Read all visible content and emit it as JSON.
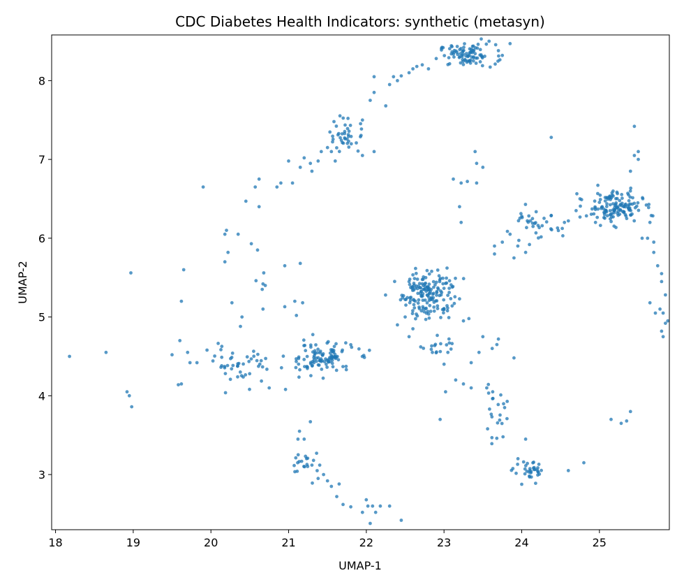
{
  "chart_data": {
    "type": "scatter",
    "title": "CDC Diabetes Health Indicators: synthetic (metasyn)",
    "xlabel": "UMAP-1",
    "ylabel": "UMAP-2",
    "xlim": [
      17.95,
      25.9
    ],
    "ylim": [
      2.3,
      8.58
    ],
    "xticks": [
      18,
      19,
      20,
      21,
      22,
      23,
      24,
      25
    ],
    "yticks": [
      3,
      4,
      5,
      6,
      7,
      8
    ],
    "point_color": "#1f77b4",
    "grid": false,
    "legend": "none",
    "clusters": [
      {
        "cx": 23.3,
        "cy": 8.32,
        "sx": 0.18,
        "sy": 0.07,
        "n": 90
      },
      {
        "cx": 22.8,
        "cy": 5.3,
        "sx": 0.17,
        "sy": 0.16,
        "n": 170
      },
      {
        "cx": 25.2,
        "cy": 6.4,
        "sx": 0.18,
        "sy": 0.1,
        "n": 140
      },
      {
        "cx": 21.4,
        "cy": 4.48,
        "sx": 0.22,
        "sy": 0.1,
        "n": 110
      },
      {
        "cx": 20.4,
        "cy": 4.4,
        "sx": 0.18,
        "sy": 0.12,
        "n": 45
      },
      {
        "cx": 21.75,
        "cy": 7.3,
        "sx": 0.12,
        "sy": 0.12,
        "n": 40
      },
      {
        "cx": 24.1,
        "cy": 3.03,
        "sx": 0.1,
        "sy": 0.06,
        "n": 35
      },
      {
        "cx": 24.15,
        "cy": 6.15,
        "sx": 0.18,
        "sy": 0.1,
        "n": 35
      },
      {
        "cx": 23.65,
        "cy": 3.75,
        "sx": 0.08,
        "sy": 0.15,
        "n": 22
      },
      {
        "cx": 21.2,
        "cy": 3.15,
        "sx": 0.1,
        "sy": 0.1,
        "n": 18
      },
      {
        "cx": 22.9,
        "cy": 4.6,
        "sx": 0.12,
        "sy": 0.08,
        "n": 15
      }
    ],
    "points": [
      [
        18.18,
        4.5
      ],
      [
        18.65,
        4.55
      ],
      [
        18.92,
        4.05
      ],
      [
        18.95,
        4.0
      ],
      [
        18.98,
        3.86
      ],
      [
        18.97,
        5.56
      ],
      [
        19.5,
        4.52
      ],
      [
        19.58,
        4.14
      ],
      [
        19.62,
        4.15
      ],
      [
        19.6,
        4.7
      ],
      [
        19.62,
        5.2
      ],
      [
        19.65,
        5.6
      ],
      [
        19.7,
        4.55
      ],
      [
        19.73,
        4.42
      ],
      [
        19.82,
        4.42
      ],
      [
        19.9,
        6.65
      ],
      [
        19.95,
        4.58
      ],
      [
        20.18,
        5.7
      ],
      [
        20.18,
        6.05
      ],
      [
        20.2,
        6.1
      ],
      [
        20.22,
        5.82
      ],
      [
        20.27,
        5.18
      ],
      [
        20.35,
        6.05
      ],
      [
        20.38,
        4.88
      ],
      [
        20.4,
        5.0
      ],
      [
        20.45,
        6.47
      ],
      [
        20.52,
        5.93
      ],
      [
        20.57,
        6.65
      ],
      [
        20.58,
        5.46
      ],
      [
        20.6,
        5.85
      ],
      [
        20.62,
        6.4
      ],
      [
        20.62,
        6.75
      ],
      [
        20.66,
        5.35
      ],
      [
        20.67,
        5.42
      ],
      [
        20.67,
        5.1
      ],
      [
        20.68,
        5.56
      ],
      [
        20.7,
        5.4
      ],
      [
        20.75,
        4.1
      ],
      [
        20.85,
        6.65
      ],
      [
        20.9,
        6.7
      ],
      [
        20.95,
        5.65
      ],
      [
        20.95,
        5.13
      ],
      [
        20.96,
        4.08
      ],
      [
        21.0,
        6.98
      ],
      [
        21.05,
        6.7
      ],
      [
        21.08,
        5.2
      ],
      [
        21.1,
        5.02
      ],
      [
        21.15,
        5.68
      ],
      [
        21.18,
        5.18
      ],
      [
        21.12,
        3.45
      ],
      [
        21.14,
        3.55
      ],
      [
        21.2,
        3.45
      ],
      [
        21.28,
        3.67
      ],
      [
        21.28,
        6.95
      ],
      [
        21.3,
        3.12
      ],
      [
        21.32,
        3.18
      ],
      [
        21.38,
        2.95
      ],
      [
        21.4,
        3.12
      ],
      [
        21.45,
        3.0
      ],
      [
        21.5,
        2.92
      ],
      [
        21.55,
        2.85
      ],
      [
        21.62,
        2.72
      ],
      [
        21.65,
        2.88
      ],
      [
        21.7,
        2.62
      ],
      [
        21.8,
        2.59
      ],
      [
        21.95,
        2.52
      ],
      [
        22.0,
        2.68
      ],
      [
        22.02,
        2.6
      ],
      [
        22.05,
        2.38
      ],
      [
        22.08,
        2.6
      ],
      [
        22.12,
        2.52
      ],
      [
        22.18,
        2.6
      ],
      [
        22.3,
        2.6
      ],
      [
        22.45,
        2.42
      ],
      [
        21.15,
        6.9
      ],
      [
        21.2,
        7.02
      ],
      [
        21.3,
        6.85
      ],
      [
        21.38,
        6.98
      ],
      [
        21.42,
        7.1
      ],
      [
        21.5,
        7.15
      ],
      [
        21.55,
        7.1
      ],
      [
        21.6,
        6.98
      ],
      [
        21.95,
        7.05
      ],
      [
        22.1,
        7.1
      ],
      [
        21.95,
        7.5
      ],
      [
        22.05,
        7.75
      ],
      [
        22.1,
        7.85
      ],
      [
        22.1,
        8.05
      ],
      [
        22.25,
        7.68
      ],
      [
        22.3,
        7.95
      ],
      [
        22.35,
        8.05
      ],
      [
        22.4,
        8.0
      ],
      [
        22.45,
        8.06
      ],
      [
        22.55,
        8.1
      ],
      [
        22.6,
        8.15
      ],
      [
        22.65,
        8.18
      ],
      [
        22.72,
        8.2
      ],
      [
        22.8,
        8.15
      ],
      [
        22.9,
        8.28
      ],
      [
        23.58,
        8.5
      ],
      [
        23.7,
        8.38
      ],
      [
        23.75,
        8.32
      ],
      [
        23.85,
        8.47
      ],
      [
        22.4,
        4.9
      ],
      [
        22.5,
        5.0
      ],
      [
        22.55,
        5.45
      ],
      [
        22.55,
        4.75
      ],
      [
        22.6,
        4.85
      ],
      [
        22.7,
        4.62
      ],
      [
        22.85,
        4.55
      ],
      [
        23.0,
        4.4
      ],
      [
        23.05,
        4.55
      ],
      [
        23.15,
        4.2
      ],
      [
        23.25,
        4.15
      ],
      [
        23.35,
        4.1
      ],
      [
        23.35,
        4.42
      ],
      [
        23.45,
        4.55
      ],
      [
        23.5,
        4.75
      ],
      [
        23.55,
        4.1
      ],
      [
        23.62,
        4.6
      ],
      [
        23.68,
        4.65
      ],
      [
        23.7,
        4.72
      ],
      [
        23.78,
        3.85
      ],
      [
        23.9,
        4.48
      ],
      [
        23.02,
        4.05
      ],
      [
        22.95,
        3.7
      ],
      [
        23.25,
        4.95
      ],
      [
        23.32,
        4.98
      ],
      [
        23.12,
        6.75
      ],
      [
        23.22,
        6.7
      ],
      [
        23.3,
        6.72
      ],
      [
        23.2,
        6.4
      ],
      [
        23.22,
        6.2
      ],
      [
        23.42,
        6.7
      ],
      [
        23.42,
        6.95
      ],
      [
        23.4,
        7.1
      ],
      [
        23.5,
        6.9
      ],
      [
        23.65,
        5.8
      ],
      [
        23.65,
        5.9
      ],
      [
        23.75,
        5.95
      ],
      [
        23.85,
        6.05
      ],
      [
        23.9,
        5.75
      ],
      [
        23.95,
        5.9
      ],
      [
        24.05,
        5.82
      ],
      [
        24.1,
        5.92
      ],
      [
        24.38,
        7.28
      ],
      [
        24.05,
        3.45
      ],
      [
        24.6,
        3.05
      ],
      [
        24.8,
        3.15
      ],
      [
        24.55,
        6.2
      ],
      [
        24.6,
        6.22
      ],
      [
        24.7,
        6.35
      ],
      [
        24.75,
        6.5
      ],
      [
        25.15,
        3.7
      ],
      [
        25.28,
        3.65
      ],
      [
        25.35,
        3.68
      ],
      [
        25.4,
        3.8
      ],
      [
        25.45,
        7.42
      ],
      [
        25.45,
        7.05
      ],
      [
        25.5,
        7.1
      ],
      [
        25.5,
        7.0
      ],
      [
        25.4,
        6.85
      ],
      [
        25.55,
        6.0
      ],
      [
        25.65,
        6.2
      ],
      [
        25.62,
        6.0
      ],
      [
        25.7,
        5.95
      ],
      [
        25.7,
        5.82
      ],
      [
        25.75,
        5.65
      ],
      [
        25.8,
        5.55
      ],
      [
        25.8,
        5.45
      ],
      [
        25.85,
        5.28
      ],
      [
        25.78,
        5.1
      ],
      [
        25.82,
        5.05
      ],
      [
        25.85,
        4.92
      ],
      [
        25.72,
        5.05
      ],
      [
        25.8,
        4.82
      ],
      [
        25.82,
        4.75
      ],
      [
        25.88,
        4.95
      ],
      [
        25.65,
        5.18
      ]
    ]
  }
}
